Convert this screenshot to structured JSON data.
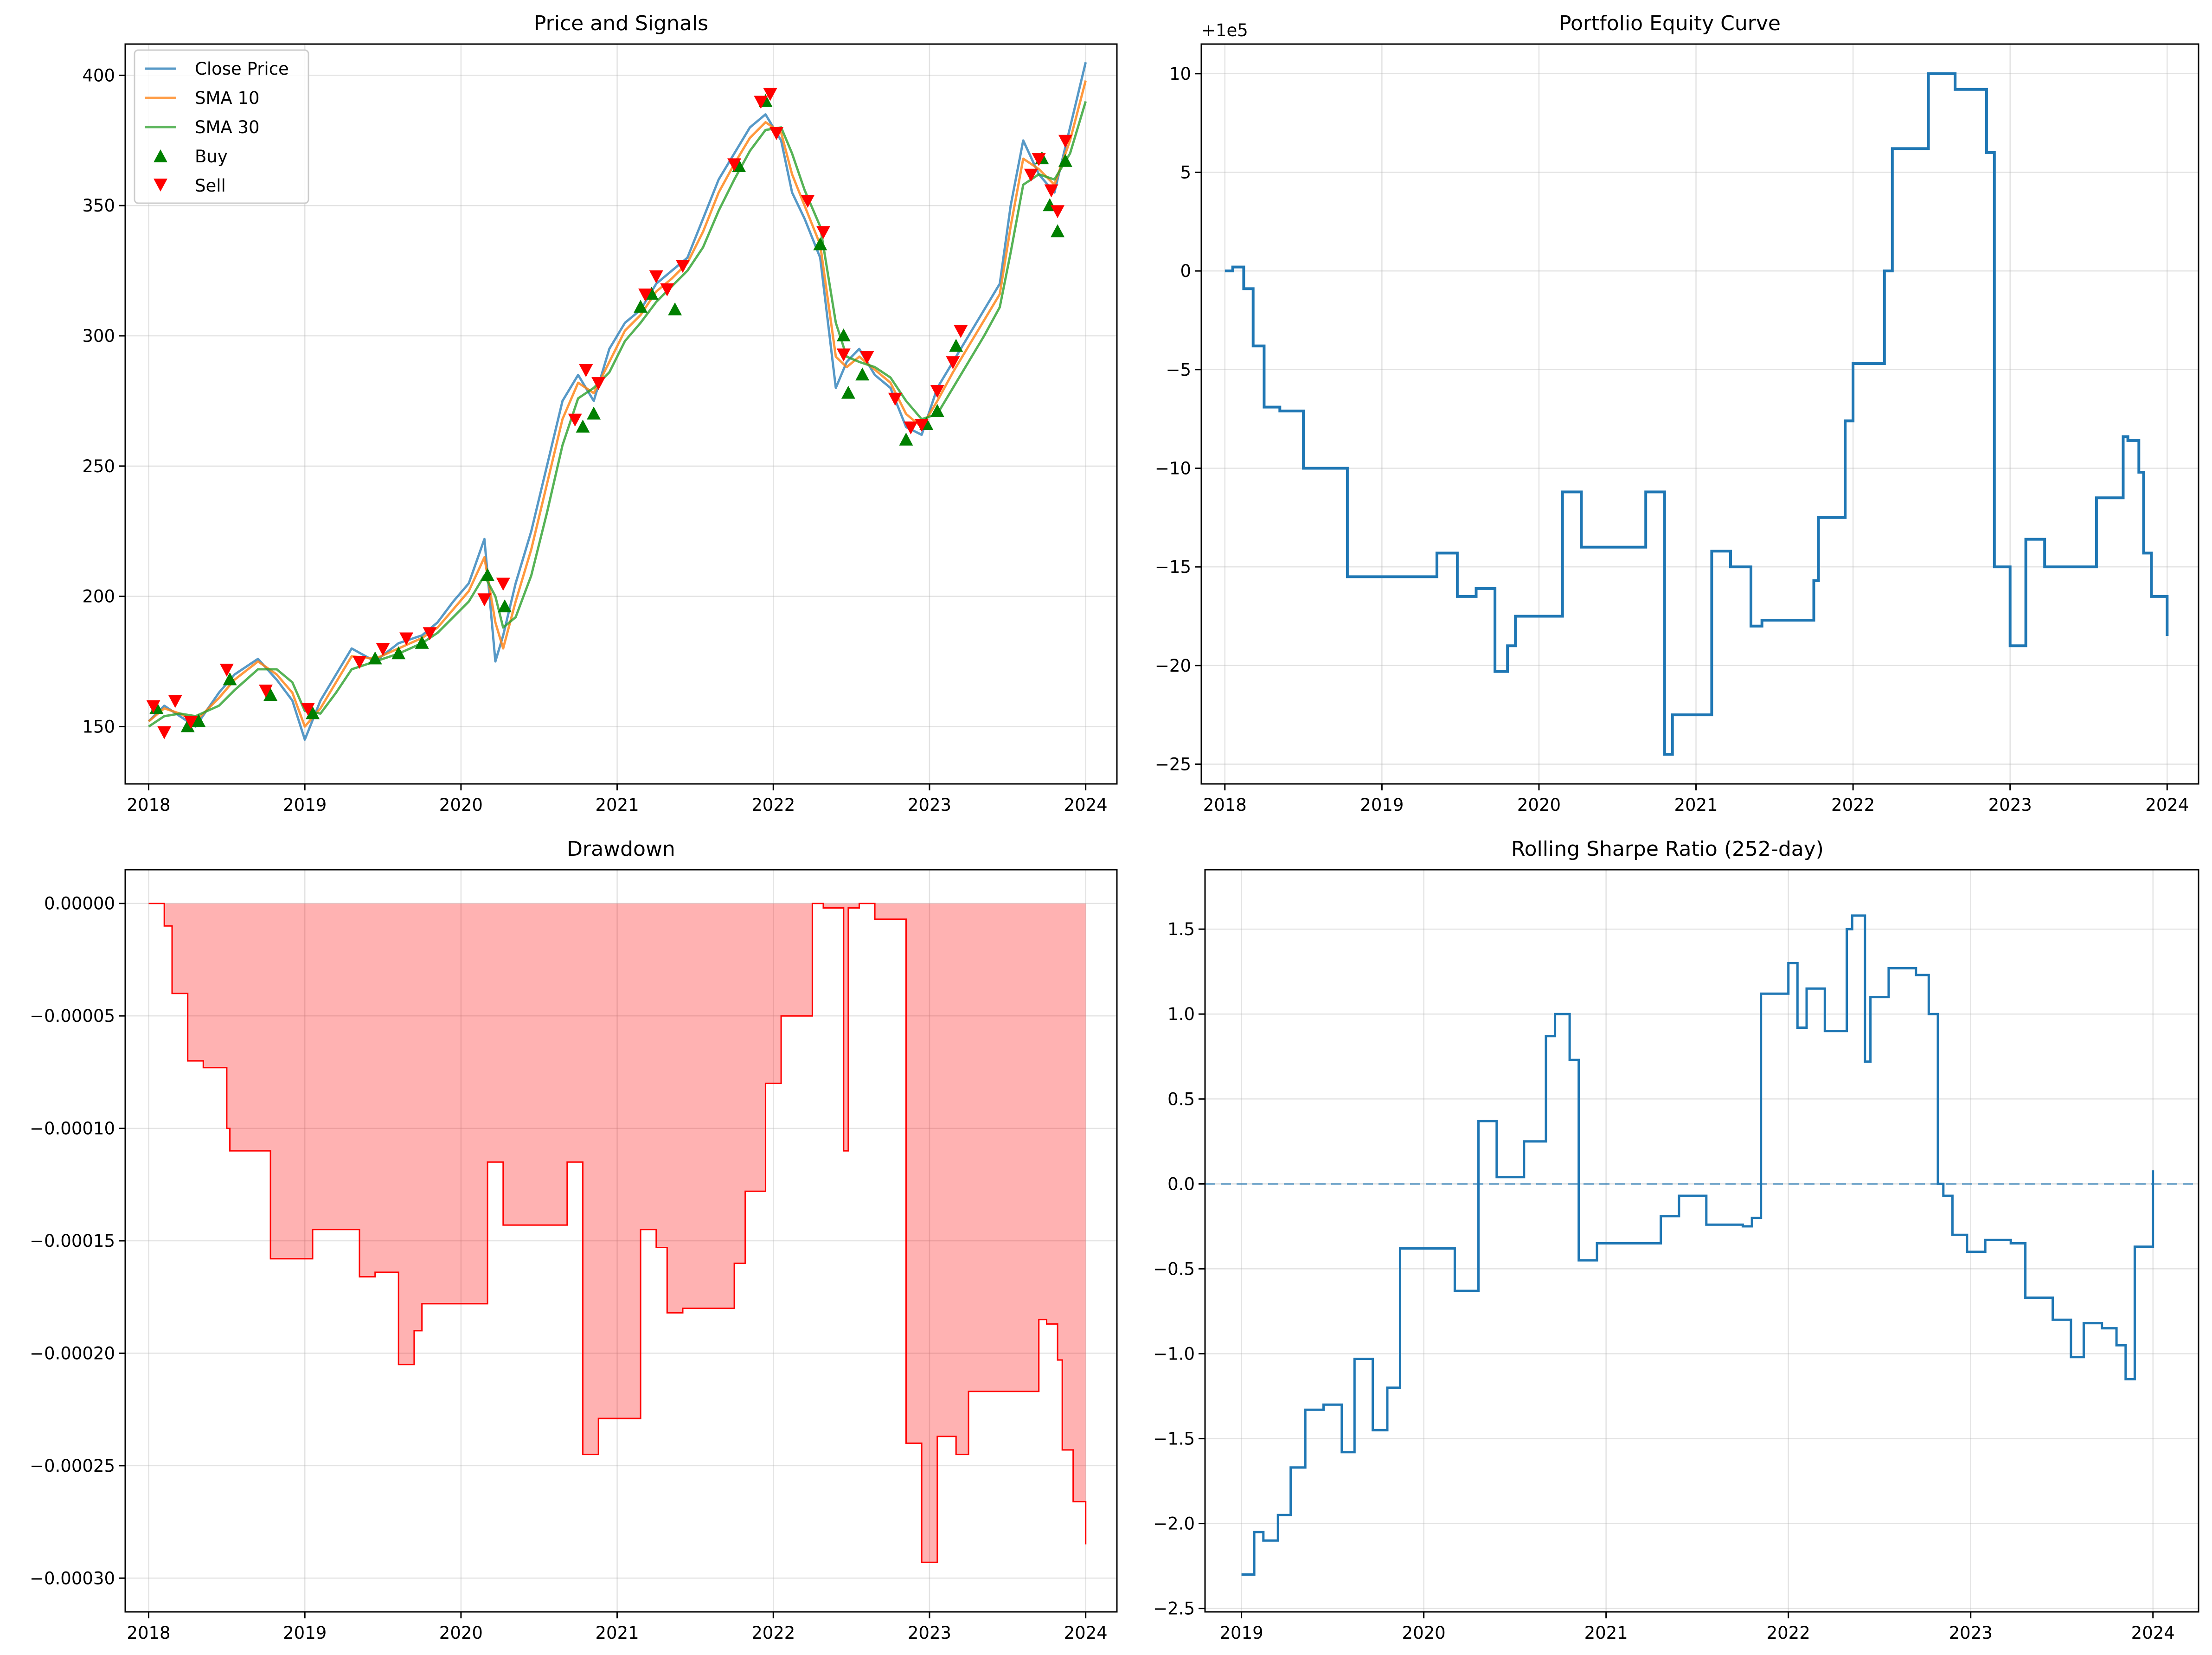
{
  "chart_data": [
    {
      "type": "line",
      "title": "Price and Signals",
      "xlim": [
        2017.85,
        2024.2
      ],
      "ylim": [
        128,
        412
      ],
      "x_ticks": [
        2018,
        2019,
        2020,
        2021,
        2022,
        2023,
        2024
      ],
      "x_tick_labels": [
        "2018",
        "2019",
        "2020",
        "2021",
        "2022",
        "2023",
        "2024"
      ],
      "y_ticks": [
        150,
        200,
        250,
        300,
        350,
        400
      ],
      "y_tick_labels": [
        "150",
        "200",
        "250",
        "300",
        "350",
        "400"
      ],
      "grid": true,
      "legend": "top-left",
      "series": [
        {
          "name": "Close Price",
          "color": "#1f77b4",
          "x": [
            2018.0,
            2018.1,
            2018.2,
            2018.3,
            2018.45,
            2018.55,
            2018.7,
            2018.82,
            2018.92,
            2019.0,
            2019.1,
            2019.2,
            2019.3,
            2019.45,
            2019.6,
            2019.75,
            2019.85,
            2019.95,
            2020.05,
            2020.15,
            2020.22,
            2020.27,
            2020.35,
            2020.45,
            2020.55,
            2020.65,
            2020.75,
            2020.85,
            2020.95,
            2021.05,
            2021.15,
            2021.25,
            2021.35,
            2021.45,
            2021.55,
            2021.65,
            2021.75,
            2021.85,
            2021.95,
            2022.05,
            2022.12,
            2022.2,
            2022.3,
            2022.4,
            2022.47,
            2022.55,
            2022.65,
            2022.75,
            2022.85,
            2022.95,
            2023.05,
            2023.15,
            2023.25,
            2023.35,
            2023.45,
            2023.52,
            2023.6,
            2023.7,
            2023.8,
            2023.9,
            2024.0
          ],
          "y": [
            152,
            158,
            154,
            150,
            163,
            170,
            176,
            168,
            160,
            145,
            160,
            170,
            180,
            175,
            182,
            185,
            190,
            198,
            205,
            222,
            175,
            185,
            205,
            225,
            250,
            275,
            285,
            275,
            295,
            305,
            310,
            320,
            325,
            330,
            345,
            360,
            370,
            380,
            385,
            375,
            355,
            345,
            330,
            280,
            290,
            295,
            285,
            280,
            265,
            262,
            280,
            290,
            300,
            310,
            320,
            350,
            375,
            362,
            355,
            380,
            405
          ]
        },
        {
          "name": "SMA 10",
          "color": "#ff7f0e",
          "x": [
            2018.0,
            2018.1,
            2018.2,
            2018.3,
            2018.45,
            2018.55,
            2018.7,
            2018.82,
            2018.92,
            2019.0,
            2019.1,
            2019.2,
            2019.3,
            2019.45,
            2019.6,
            2019.75,
            2019.85,
            2019.95,
            2020.05,
            2020.15,
            2020.22,
            2020.27,
            2020.35,
            2020.45,
            2020.55,
            2020.65,
            2020.75,
            2020.85,
            2020.95,
            2021.05,
            2021.15,
            2021.25,
            2021.35,
            2021.45,
            2021.55,
            2021.65,
            2021.75,
            2021.85,
            2021.95,
            2022.05,
            2022.12,
            2022.2,
            2022.3,
            2022.4,
            2022.47,
            2022.55,
            2022.65,
            2022.75,
            2022.85,
            2022.95,
            2023.05,
            2023.15,
            2023.25,
            2023.35,
            2023.45,
            2023.52,
            2023.6,
            2023.7,
            2023.8,
            2023.9,
            2024.0
          ],
          "y": [
            152,
            157,
            155,
            152,
            161,
            168,
            175,
            170,
            163,
            150,
            157,
            167,
            177,
            176,
            180,
            184,
            188,
            195,
            202,
            215,
            190,
            180,
            198,
            218,
            243,
            268,
            282,
            278,
            290,
            302,
            308,
            317,
            322,
            328,
            340,
            355,
            366,
            376,
            382,
            378,
            362,
            350,
            335,
            292,
            288,
            292,
            287,
            282,
            270,
            265,
            275,
            286,
            296,
            306,
            316,
            342,
            368,
            364,
            358,
            375,
            398
          ]
        },
        {
          "name": "SMA 30",
          "color": "#2ca02c",
          "x": [
            2018.0,
            2018.1,
            2018.2,
            2018.3,
            2018.45,
            2018.55,
            2018.7,
            2018.82,
            2018.92,
            2019.0,
            2019.1,
            2019.2,
            2019.3,
            2019.45,
            2019.6,
            2019.75,
            2019.85,
            2019.95,
            2020.05,
            2020.15,
            2020.22,
            2020.27,
            2020.35,
            2020.45,
            2020.55,
            2020.65,
            2020.75,
            2020.85,
            2020.95,
            2021.05,
            2021.15,
            2021.25,
            2021.35,
            2021.45,
            2021.55,
            2021.65,
            2021.75,
            2021.85,
            2021.95,
            2022.05,
            2022.12,
            2022.2,
            2022.3,
            2022.4,
            2022.47,
            2022.55,
            2022.65,
            2022.75,
            2022.85,
            2022.95,
            2023.05,
            2023.15,
            2023.25,
            2023.35,
            2023.45,
            2023.52,
            2023.6,
            2023.7,
            2023.8,
            2023.9,
            2024.0
          ],
          "y": [
            150,
            154,
            155,
            154,
            158,
            164,
            172,
            172,
            167,
            156,
            155,
            163,
            172,
            175,
            178,
            182,
            186,
            192,
            198,
            208,
            200,
            188,
            192,
            208,
            232,
            258,
            276,
            280,
            286,
            298,
            305,
            313,
            319,
            325,
            334,
            348,
            360,
            371,
            379,
            380,
            370,
            356,
            342,
            305,
            292,
            290,
            288,
            284,
            275,
            268,
            270,
            280,
            290,
            300,
            311,
            332,
            358,
            362,
            360,
            370,
            390
          ]
        }
      ],
      "markers": [
        {
          "name": "Buy",
          "color": "#008000",
          "shape": "triangle-up",
          "x": [
            2018.05,
            2018.25,
            2018.32,
            2018.52,
            2018.78,
            2019.05,
            2019.45,
            2019.6,
            2019.75,
            2020.17,
            2020.28,
            2020.78,
            2020.85,
            2021.15,
            2021.22,
            2021.37,
            2021.78,
            2021.95,
            2022.3,
            2022.45,
            2022.48,
            2022.57,
            2022.85,
            2022.98,
            2023.05,
            2023.17,
            2023.72,
            2023.77,
            2023.82,
            2023.87
          ],
          "y": [
            157,
            150,
            152,
            168,
            162,
            155,
            176,
            178,
            182,
            208,
            196,
            265,
            270,
            311,
            316,
            310,
            365,
            390,
            335,
            300,
            278,
            285,
            260,
            266,
            271,
            296,
            368,
            350,
            340,
            367
          ]
        },
        {
          "name": "Sell",
          "color": "#ff0000",
          "shape": "triangle-down",
          "x": [
            2018.03,
            2018.1,
            2018.17,
            2018.27,
            2018.5,
            2018.75,
            2019.02,
            2019.35,
            2019.5,
            2019.65,
            2019.8,
            2020.15,
            2020.27,
            2020.73,
            2020.8,
            2020.88,
            2021.18,
            2021.25,
            2021.32,
            2021.42,
            2021.75,
            2021.92,
            2021.98,
            2022.02,
            2022.22,
            2022.32,
            2022.45,
            2022.6,
            2022.78,
            2022.88,
            2022.95,
            2023.05,
            2023.15,
            2023.2,
            2023.65,
            2023.7,
            2023.78,
            2023.82,
            2023.87
          ],
          "y": [
            158,
            148,
            160,
            152,
            172,
            164,
            157,
            175,
            180,
            184,
            186,
            199,
            205,
            268,
            287,
            282,
            316,
            323,
            318,
            327,
            366,
            390,
            393,
            378,
            352,
            340,
            293,
            292,
            276,
            265,
            266,
            279,
            290,
            302,
            362,
            368,
            356,
            348,
            375
          ]
        }
      ]
    },
    {
      "type": "line",
      "title": "Portfolio Equity Curve",
      "offset_label": "+1e5",
      "xlim": [
        2017.85,
        2024.2
      ],
      "ylim": [
        -26,
        11.5
      ],
      "x_ticks": [
        2018,
        2019,
        2020,
        2021,
        2022,
        2023,
        2024
      ],
      "x_tick_labels": [
        "2018",
        "2019",
        "2020",
        "2021",
        "2022",
        "2023",
        "2024"
      ],
      "y_ticks": [
        10,
        5,
        0,
        -5,
        -10,
        -15,
        -20,
        -25
      ],
      "y_tick_labels": [
        "10",
        "5",
        "0",
        "−5",
        "−10",
        "−15",
        "−20",
        "−25"
      ],
      "grid": true,
      "color": "#1f77b4",
      "step_x": [
        2018.0,
        2018.05,
        2018.12,
        2018.18,
        2018.25,
        2018.35,
        2018.48,
        2018.5,
        2018.78,
        2019.05,
        2019.35,
        2019.48,
        2019.6,
        2019.72,
        2019.8,
        2019.85,
        2020.1,
        2020.15,
        2020.27,
        2020.65,
        2020.68,
        2020.8,
        2020.85,
        2021.03,
        2021.1,
        2021.22,
        2021.35,
        2021.42,
        2021.75,
        2021.78,
        2021.85,
        2021.95,
        2022.0,
        2022.05,
        2022.2,
        2022.25,
        2022.45,
        2022.48,
        2022.55,
        2022.65,
        2022.8,
        2022.85,
        2022.9,
        2023.0,
        2023.1,
        2023.22,
        2023.55,
        2023.65,
        2023.72,
        2023.75,
        2023.82,
        2023.85,
        2023.9,
        2024.0
      ],
      "step_y": [
        0,
        2,
        -9,
        -38,
        -69,
        -71,
        -71,
        -100,
        -155,
        -155,
        -143,
        -165,
        -161,
        -203,
        -190,
        -175,
        -175,
        -112,
        -140,
        -140,
        -112,
        -245,
        -225,
        -225,
        -142,
        -150,
        -180,
        -177,
        -157,
        -125,
        -125,
        -76,
        -47,
        -47,
        0,
        62,
        62,
        100,
        100,
        92,
        92,
        60,
        -150,
        -190,
        -136,
        -150,
        -115,
        -115,
        -84,
        -86,
        -102,
        -143,
        -165,
        -185
      ],
      "step_scale": 0.1
    },
    {
      "type": "area",
      "title": "Drawdown",
      "xlim": [
        2017.85,
        2024.2
      ],
      "ylim": [
        -0.000315,
        1.5e-05
      ],
      "x_ticks": [
        2018,
        2019,
        2020,
        2021,
        2022,
        2023,
        2024
      ],
      "x_tick_labels": [
        "2018",
        "2019",
        "2020",
        "2021",
        "2022",
        "2023",
        "2024"
      ],
      "y_ticks": [
        0.0,
        -5e-05,
        -0.0001,
        -0.00015,
        -0.0002,
        -0.00025,
        -0.0003
      ],
      "y_tick_labels": [
        "0.00000",
        "−0.00005",
        "−0.00010",
        "−0.00015",
        "−0.00020",
        "−0.00025",
        "−0.00030"
      ],
      "grid": true,
      "line_color": "#ff0000",
      "fill_color": "#ff0000",
      "step_x": [
        2018.0,
        2018.1,
        2018.15,
        2018.25,
        2018.35,
        2018.5,
        2018.52,
        2018.78,
        2019.05,
        2019.35,
        2019.45,
        2019.6,
        2019.7,
        2019.75,
        2019.85,
        2020.17,
        2020.27,
        2020.65,
        2020.68,
        2020.78,
        2020.88,
        2020.95,
        2021.15,
        2021.25,
        2021.32,
        2021.42,
        2021.75,
        2021.82,
        2021.95,
        2022.05,
        2022.25,
        2022.32,
        2022.45,
        2022.48,
        2022.55,
        2022.65,
        2022.8,
        2022.85,
        2022.95,
        2023.05,
        2023.17,
        2023.25,
        2023.62,
        2023.7,
        2023.75,
        2023.82,
        2023.85,
        2023.92,
        2024.0
      ],
      "step_y": [
        0,
        -1e-05,
        -4e-05,
        -7e-05,
        -7.3e-05,
        -0.0001,
        -0.00011,
        -0.000158,
        -0.000145,
        -0.000166,
        -0.000164,
        -0.000205,
        -0.00019,
        -0.000178,
        -0.000178,
        -0.000115,
        -0.000143,
        -0.000143,
        -0.000115,
        -0.000245,
        -0.000229,
        -0.000229,
        -0.000145,
        -0.000153,
        -0.000182,
        -0.00018,
        -0.00016,
        -0.000128,
        -8e-05,
        -5e-05,
        0,
        -2e-06,
        -0.00011,
        -2e-06,
        0,
        -7e-06,
        -7e-06,
        -0.00024,
        -0.000293,
        -0.000237,
        -0.000245,
        -0.000217,
        -0.000217,
        -0.000185,
        -0.000187,
        -0.000203,
        -0.000243,
        -0.000266,
        -0.000285
      ]
    },
    {
      "type": "line",
      "title": "Rolling Sharpe Ratio (252-day)",
      "xlim": [
        2018.8,
        2024.25
      ],
      "ylim": [
        -2.52,
        1.85
      ],
      "x_ticks": [
        2019,
        2020,
        2021,
        2022,
        2023,
        2024
      ],
      "x_tick_labels": [
        "2019",
        "2020",
        "2021",
        "2022",
        "2023",
        "2024"
      ],
      "y_ticks": [
        1.5,
        1.0,
        0.5,
        0.0,
        -0.5,
        -1.0,
        -1.5,
        -2.0,
        -2.5
      ],
      "y_tick_labels": [
        "1.5",
        "1.0",
        "0.5",
        "0.0",
        "−0.5",
        "−1.0",
        "−1.5",
        "−2.0",
        "−2.5"
      ],
      "grid": true,
      "reference_line": 0,
      "color": "#1f77b4",
      "step_x": [
        2019.0,
        2019.07,
        2019.12,
        2019.2,
        2019.27,
        2019.35,
        2019.45,
        2019.55,
        2019.62,
        2019.72,
        2019.8,
        2019.87,
        2020.05,
        2020.17,
        2020.3,
        2020.4,
        2020.55,
        2020.67,
        2020.72,
        2020.8,
        2020.85,
        2020.95,
        2021.1,
        2021.22,
        2021.3,
        2021.4,
        2021.55,
        2021.7,
        2021.75,
        2021.8,
        2021.85,
        2022.0,
        2022.05,
        2022.1,
        2022.2,
        2022.32,
        2022.35,
        2022.42,
        2022.45,
        2022.55,
        2022.62,
        2022.7,
        2022.77,
        2022.82,
        2022.85,
        2022.9,
        2022.98,
        2023.08,
        2023.15,
        2023.22,
        2023.3,
        2023.45,
        2023.55,
        2023.62,
        2023.72,
        2023.8,
        2023.85,
        2023.9,
        2024.0
      ],
      "step_y": [
        -2.3,
        -2.05,
        -2.1,
        -1.95,
        -1.67,
        -1.33,
        -1.3,
        -1.58,
        -1.03,
        -1.45,
        -1.2,
        -0.38,
        -0.38,
        -0.63,
        0.37,
        0.04,
        0.25,
        0.87,
        1.0,
        0.73,
        -0.45,
        -0.35,
        -0.35,
        -0.35,
        -0.19,
        -0.07,
        -0.24,
        -0.24,
        -0.25,
        -0.2,
        1.12,
        1.3,
        0.92,
        1.15,
        0.9,
        1.5,
        1.58,
        0.72,
        1.1,
        1.27,
        1.27,
        1.23,
        1.0,
        0.0,
        -0.07,
        -0.3,
        -0.4,
        -0.33,
        -0.33,
        -0.35,
        -0.67,
        -0.8,
        -1.02,
        -0.82,
        -0.85,
        -0.95,
        -1.15,
        -0.37,
        0.08
      ],
      "legend": ""
    }
  ]
}
